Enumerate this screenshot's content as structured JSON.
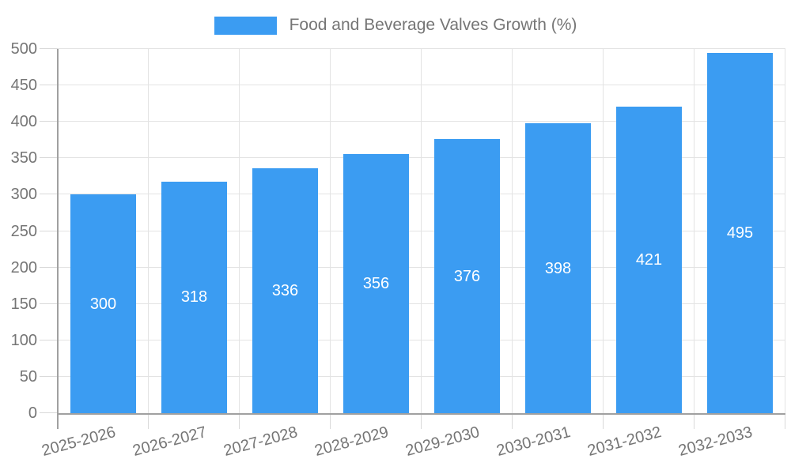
{
  "legend": {
    "label": "Food and Beverage Valves Growth (%)"
  },
  "chart_data": {
    "type": "bar",
    "title": "Food and Beverage Valves Growth (%)",
    "categories": [
      "2025-2026",
      "2026-2027",
      "2027-2028",
      "2028-2029",
      "2029-2030",
      "2030-2031",
      "2031-2032",
      "2032-2033"
    ],
    "values": [
      300,
      318,
      336,
      356,
      376,
      398,
      421,
      495
    ],
    "xlabel": "",
    "ylabel": "",
    "ylim": [
      0,
      500
    ],
    "yticks": [
      0,
      50,
      100,
      150,
      200,
      250,
      300,
      350,
      400,
      450,
      500
    ],
    "grid": true,
    "legend_position": "top-center",
    "value_label_position": "bar-center",
    "x_tick_rotation_deg": -15
  },
  "colors": {
    "bar": "#3b9cf2",
    "value_label": "#ffffff",
    "axis_text": "#757575",
    "legend_text": "#757575",
    "axis_line": "#a0a0a0",
    "grid_line": "#e3e3e3",
    "tick_line": "#d9d9d9",
    "background": "#ffffff"
  }
}
